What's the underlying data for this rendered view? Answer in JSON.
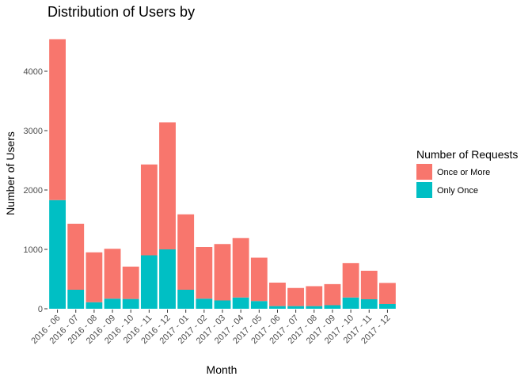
{
  "chart_data": {
    "type": "bar",
    "stacked": true,
    "title": "Distribution of Users by",
    "xlabel": "Month",
    "ylabel": "Number of Users",
    "ylim": [
      0,
      4700
    ],
    "yticks": [
      0,
      1000,
      2000,
      3000,
      4000
    ],
    "categories": [
      "2016 - 06",
      "2016 - 07",
      "2016 - 08",
      "2016 - 09",
      "2016 - 10",
      "2016 - 11",
      "2016 - 12",
      "2017 - 01",
      "2017 - 02",
      "2017 - 03",
      "2017 - 04",
      "2017 - 05",
      "2017 - 06",
      "2017 - 07",
      "2017 - 08",
      "2017 - 09",
      "2017 - 10",
      "2017 - 11",
      "2017 - 12"
    ],
    "series": [
      {
        "name": "Only Once",
        "color": "#00BFC4",
        "values": [
          1830,
          320,
          110,
          170,
          165,
          900,
          1000,
          320,
          170,
          140,
          190,
          130,
          45,
          45,
          45,
          60,
          190,
          160,
          80
        ]
      },
      {
        "name": "Once or More",
        "color": "#F8766D",
        "values": [
          2710,
          1110,
          840,
          840,
          545,
          1530,
          2140,
          1270,
          870,
          950,
          1000,
          730,
          395,
          305,
          335,
          355,
          580,
          480,
          355
        ]
      }
    ],
    "legend": {
      "title": "Number of Requests",
      "position": "right",
      "entries": [
        {
          "label": "Once or More",
          "color": "#F8766D"
        },
        {
          "label": "Only Once",
          "color": "#00BFC4"
        }
      ]
    },
    "grid": false
  }
}
